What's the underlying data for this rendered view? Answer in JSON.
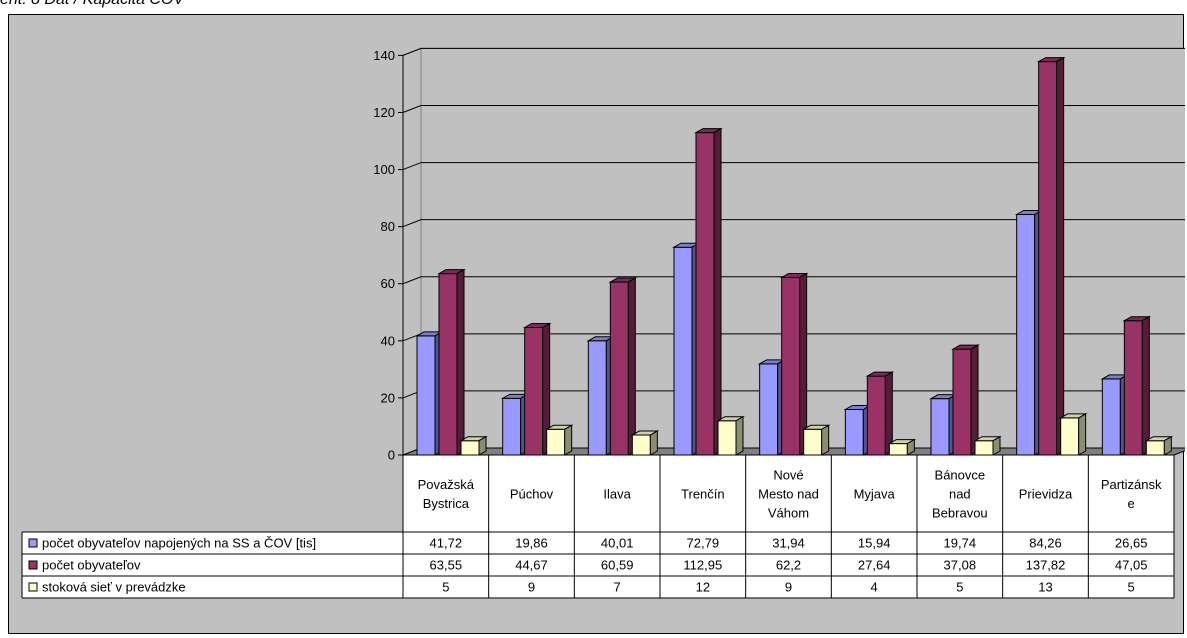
{
  "caption": "ent. 8 Dat / Kapacita ČOV",
  "chart_data": {
    "type": "bar",
    "bar_style": "3d-clustered-column-with-data-table",
    "categories": [
      [
        "Považská",
        "Bystrica"
      ],
      [
        "Púchov"
      ],
      [
        "Ilava"
      ],
      [
        "Trenčín"
      ],
      [
        "Nové",
        "Mesto nad",
        "Váhom"
      ],
      [
        "Myjava"
      ],
      [
        "Bánovce",
        "nad",
        "Bebravou"
      ],
      [
        "Prievidza"
      ],
      [
        "Partizánsk",
        "e"
      ]
    ],
    "series": [
      {
        "name": "počet obyvateľov napojených na SS a ČOV [tis]",
        "color": "#9999ff",
        "values": [
          41.72,
          19.86,
          40.01,
          72.79,
          31.94,
          15.94,
          19.74,
          84.26,
          26.65
        ],
        "labels": [
          "41,72",
          "19,86",
          "40,01",
          "72,79",
          "31,94",
          "15,94",
          "19,74",
          "84,26",
          "26,65"
        ]
      },
      {
        "name": "počet obyvateľov",
        "color": "#993366",
        "values": [
          63.55,
          44.67,
          60.59,
          112.95,
          62.2,
          27.64,
          37.08,
          137.82,
          47.05
        ],
        "labels": [
          "63,55",
          "44,67",
          "60,59",
          "112,95",
          "62,2",
          "27,64",
          "37,08",
          "137,82",
          "47,05"
        ]
      },
      {
        "name": "stoková sieť v prevádzke",
        "color": "#ffffcc",
        "values": [
          5,
          9,
          7,
          12,
          9,
          4,
          5,
          13,
          5
        ],
        "labels": [
          "5",
          "9",
          "7",
          "12",
          "9",
          "4",
          "5",
          "13",
          "5"
        ]
      }
    ],
    "yticks": [
      0,
      20,
      40,
      60,
      80,
      100,
      120,
      140
    ],
    "ylim": [
      0,
      140
    ],
    "grid": true,
    "legend": "data-table"
  }
}
